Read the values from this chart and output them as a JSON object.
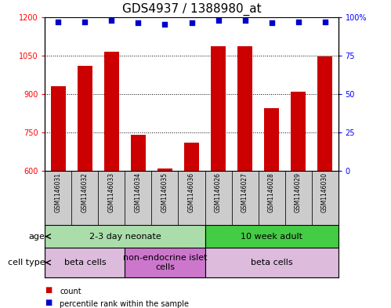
{
  "title": "GDS4937 / 1388980_at",
  "samples": [
    "GSM1146031",
    "GSM1146032",
    "GSM1146033",
    "GSM1146034",
    "GSM1146035",
    "GSM1146036",
    "GSM1146026",
    "GSM1146027",
    "GSM1146028",
    "GSM1146029",
    "GSM1146030"
  ],
  "counts": [
    930,
    1010,
    1065,
    740,
    610,
    710,
    1085,
    1085,
    845,
    910,
    1045
  ],
  "percentiles": [
    97,
    97,
    98,
    96,
    95,
    96,
    98,
    98,
    96,
    97,
    97
  ],
  "ylim_left": [
    600,
    1200
  ],
  "ylim_right": [
    0,
    100
  ],
  "yticks_left": [
    600,
    750,
    900,
    1050,
    1200
  ],
  "yticks_right": [
    0,
    25,
    50,
    75,
    100
  ],
  "bar_color": "#cc0000",
  "dot_color": "#0000cc",
  "age_groups": [
    {
      "label": "2-3 day neonate",
      "start": 0,
      "end": 6,
      "color": "#aaddaa"
    },
    {
      "label": "10 week adult",
      "start": 6,
      "end": 11,
      "color": "#44cc44"
    }
  ],
  "cell_type_groups": [
    {
      "label": "beta cells",
      "start": 0,
      "end": 3,
      "color": "#ddbbdd"
    },
    {
      "label": "non-endocrine islet\ncells",
      "start": 3,
      "end": 6,
      "color": "#cc77cc"
    },
    {
      "label": "beta cells",
      "start": 6,
      "end": 11,
      "color": "#ddbbdd"
    }
  ],
  "xlabel_age": "age",
  "xlabel_celltype": "cell type",
  "legend_count_label": "count",
  "legend_pct_label": "percentile rank within the sample",
  "title_fontsize": 11,
  "tick_fontsize": 7,
  "label_fontsize": 8,
  "sample_fontsize": 5.5
}
